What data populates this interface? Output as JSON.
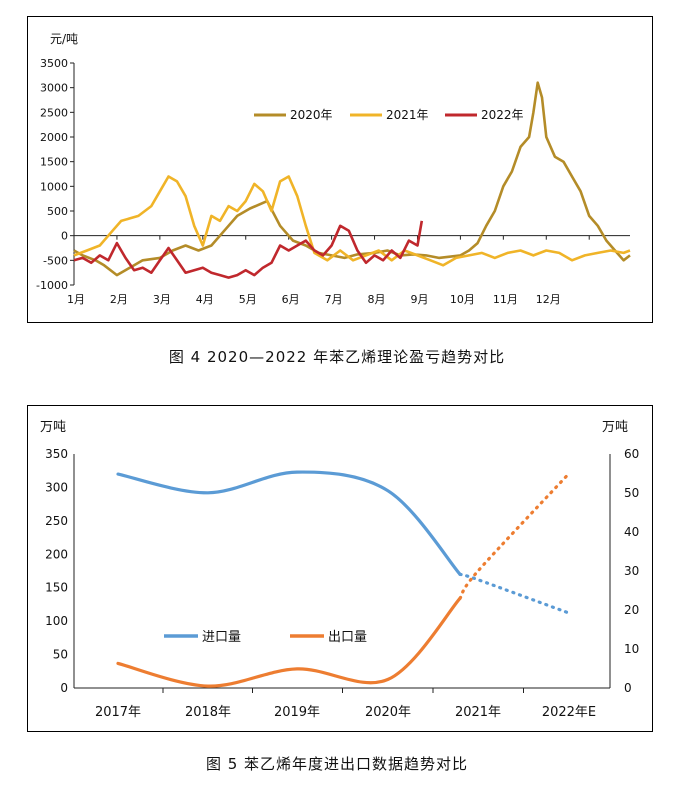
{
  "chart_data": [
    {
      "type": "line",
      "caption": "图 4  2020—2022 年苯乙烯理论盈亏趋势对比",
      "ylabel": "元/吨",
      "ylim": [
        -1000,
        3500
      ],
      "yticks": [
        "3500",
        "3000",
        "2500",
        "2000",
        "1500",
        "1000",
        "500",
        "0",
        "-500",
        "-1000"
      ],
      "categories": [
        "1月",
        "2月",
        "3月",
        "4月",
        "5月",
        "6月",
        "7月",
        "8月",
        "9月",
        "10月",
        "11月",
        "12月"
      ],
      "legend_position": "top-center",
      "series": [
        {
          "name": "2020年",
          "color": "#b48c28",
          "x": [
            1.0,
            1.2,
            1.5,
            1.7,
            2.0,
            2.3,
            2.6,
            3.0,
            3.3,
            3.6,
            3.9,
            4.2,
            4.5,
            4.8,
            5.1,
            5.5,
            5.8,
            6.1,
            6.4,
            6.7,
            7.0,
            7.3,
            7.6,
            8.0,
            8.3,
            8.6,
            8.9,
            9.2,
            9.5,
            9.8,
            10.0,
            10.2,
            10.4,
            10.6,
            10.8,
            11.0,
            11.2,
            11.4,
            11.6,
            11.7,
            11.8,
            11.9,
            12.0,
            12.2,
            12.4,
            12.6,
            12.8,
            13.0,
            13.2,
            13.4,
            13.6,
            13.8,
            13.95
          ],
          "values": [
            -300,
            -400,
            -500,
            -600,
            -800,
            -650,
            -500,
            -450,
            -300,
            -200,
            -300,
            -200,
            100,
            400,
            550,
            700,
            200,
            -100,
            -200,
            -350,
            -400,
            -450,
            -380,
            -350,
            -300,
            -400,
            -380,
            -400,
            -450,
            -420,
            -400,
            -300,
            -150,
            200,
            500,
            1000,
            1300,
            1800,
            2000,
            2500,
            3100,
            2800,
            2000,
            1600,
            1500,
            1200,
            900,
            400,
            200,
            -100,
            -300,
            -500,
            -400
          ]
        },
        {
          "name": "2021年",
          "color": "#f0b428",
          "x": [
            1.0,
            1.3,
            1.6,
            1.9,
            2.1,
            2.3,
            2.5,
            2.8,
            3.0,
            3.2,
            3.4,
            3.6,
            3.8,
            4.0,
            4.2,
            4.4,
            4.6,
            4.8,
            5.0,
            5.2,
            5.4,
            5.6,
            5.8,
            6.0,
            6.2,
            6.4,
            6.6,
            6.9,
            7.2,
            7.5,
            7.8,
            8.1,
            8.4,
            8.7,
            9.0,
            9.3,
            9.6,
            9.9,
            10.2,
            10.5,
            10.8,
            11.1,
            11.4,
            11.7,
            12.0,
            12.3,
            12.6,
            12.9,
            13.2,
            13.5,
            13.8,
            13.95
          ],
          "values": [
            -400,
            -300,
            -200,
            100,
            300,
            350,
            400,
            600,
            900,
            1200,
            1100,
            800,
            200,
            -200,
            400,
            300,
            600,
            500,
            700,
            1050,
            900,
            500,
            1100,
            1200,
            800,
            200,
            -350,
            -500,
            -300,
            -500,
            -400,
            -300,
            -500,
            -300,
            -400,
            -500,
            -600,
            -450,
            -400,
            -350,
            -450,
            -350,
            -300,
            -400,
            -300,
            -350,
            -500,
            -400,
            -350,
            -300,
            -350,
            -300
          ]
        },
        {
          "name": "2022年",
          "color": "#c0282d",
          "x": [
            1.0,
            1.2,
            1.4,
            1.6,
            1.8,
            2.0,
            2.2,
            2.4,
            2.6,
            2.8,
            3.0,
            3.2,
            3.4,
            3.6,
            3.8,
            4.0,
            4.2,
            4.4,
            4.6,
            4.8,
            5.0,
            5.2,
            5.4,
            5.6,
            5.8,
            6.0,
            6.2,
            6.4,
            6.6,
            6.8,
            7.0,
            7.2,
            7.4,
            7.6,
            7.8,
            8.0,
            8.2,
            8.4,
            8.6,
            8.8,
            9.0,
            9.1
          ],
          "values": [
            -500,
            -450,
            -550,
            -400,
            -500,
            -150,
            -450,
            -700,
            -650,
            -750,
            -500,
            -250,
            -500,
            -750,
            -700,
            -650,
            -750,
            -800,
            -850,
            -800,
            -700,
            -800,
            -650,
            -550,
            -200,
            -300,
            -200,
            -100,
            -300,
            -400,
            -200,
            200,
            100,
            -300,
            -550,
            -400,
            -500,
            -300,
            -450,
            -100,
            -200,
            300
          ]
        }
      ]
    },
    {
      "type": "line",
      "caption": "图 5  苯乙烯年度进出口数据趋势对比",
      "ylabel": "万吨",
      "y2label": "万吨",
      "ylim": [
        0,
        350
      ],
      "y2lim": [
        0,
        60
      ],
      "yticks": [
        "350",
        "300",
        "250",
        "200",
        "150",
        "100",
        "50",
        "0"
      ],
      "y2ticks": [
        "60",
        "50",
        "40",
        "30",
        "20",
        "10",
        "0"
      ],
      "categories": [
        "2017年",
        "2018年",
        "2019年",
        "2020年",
        "2021年",
        "2022年E"
      ],
      "legend_position": "center-left",
      "series": [
        {
          "name": "进口量",
          "axis": "left",
          "color": "#5b9bd5",
          "x": [
            0,
            1,
            2,
            3,
            3.8,
            4,
            5
          ],
          "values": [
            320,
            292,
            323,
            295,
            170,
            162,
            112
          ],
          "projected_from_x": 3.8
        },
        {
          "name": "出口量",
          "axis": "right",
          "color": "#ed7d31",
          "x": [
            0,
            1,
            2,
            3,
            3.8,
            4,
            5
          ],
          "values": [
            6.3,
            0.5,
            4.9,
            2.2,
            23,
            30,
            55
          ],
          "projected_from_x": 3.8
        }
      ]
    }
  ]
}
